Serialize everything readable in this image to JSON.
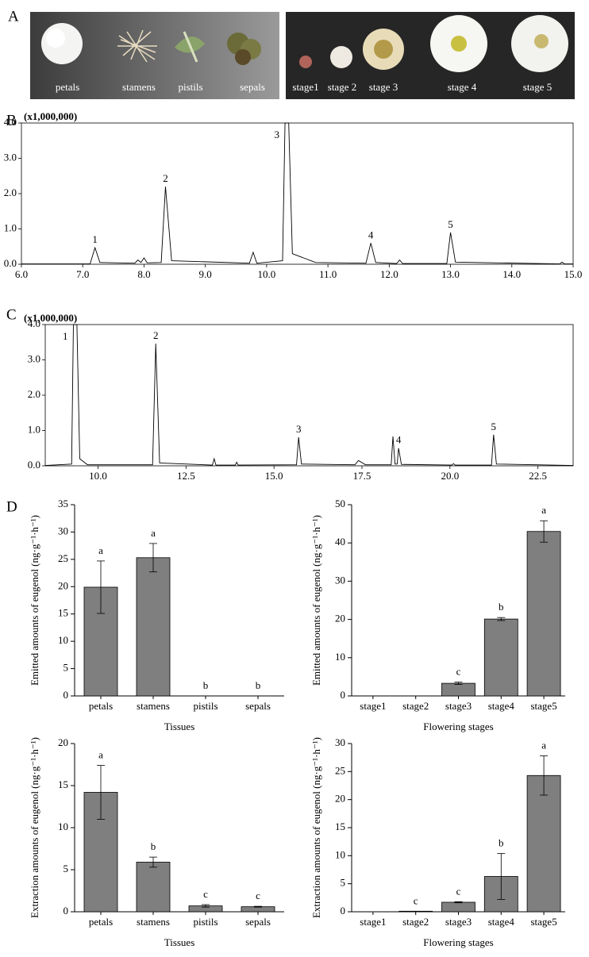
{
  "panel_labels": [
    "A",
    "B",
    "C",
    "D"
  ],
  "photos": {
    "tissues": [
      "petals",
      "stamens",
      "pistils",
      "sepals"
    ],
    "stages": [
      "stage1",
      "stage 2",
      "stage 3",
      "stage 4",
      "stage 5"
    ]
  },
  "chart_data": [
    {
      "type": "line",
      "y_multiplier": "(x1,000,000)",
      "color": "#000000",
      "x": [
        6.0,
        7.12,
        7.2,
        7.28,
        7.85,
        7.9,
        7.95,
        8.0,
        8.05,
        8.28,
        8.35,
        8.45,
        9.72,
        9.78,
        9.84,
        10.26,
        10.3,
        10.36,
        10.42,
        10.8,
        11.62,
        11.7,
        11.78,
        12.12,
        12.17,
        12.22,
        12.94,
        13.0,
        13.08,
        14.78,
        14.82,
        14.86,
        15.0
      ],
      "values": [
        0.01,
        0.01,
        0.47,
        0.05,
        0.03,
        0.12,
        0.05,
        0.18,
        0.04,
        0.05,
        2.2,
        0.1,
        0.03,
        0.34,
        0.03,
        0.1,
        4.0,
        4.0,
        0.3,
        0.05,
        0.03,
        0.6,
        0.05,
        0.02,
        0.12,
        0.02,
        0.02,
        0.9,
        0.06,
        0.01,
        0.06,
        0.01,
        0.01
      ],
      "annotations": [
        {
          "text": "1",
          "x": 7.2,
          "y": 0.47
        },
        {
          "text": "2",
          "x": 8.35,
          "y": 2.2
        },
        {
          "text": "3",
          "x": 10.3,
          "y": 4.0
        },
        {
          "text": "4",
          "x": 11.7,
          "y": 0.6
        },
        {
          "text": "5",
          "x": 13.0,
          "y": 0.9
        }
      ],
      "xlim": [
        6.0,
        15.0
      ],
      "xticks": [
        {
          "value": 6,
          "label": "6.0"
        },
        {
          "value": 7,
          "label": "7.0"
        },
        {
          "value": 8,
          "label": "8.0"
        },
        {
          "value": 9,
          "label": "9.0"
        },
        {
          "value": 10,
          "label": "10.0"
        },
        {
          "value": 11,
          "label": "11.0"
        },
        {
          "value": 12,
          "label": "12.0"
        },
        {
          "value": 13,
          "label": "13.0"
        },
        {
          "value": 14,
          "label": "14.0"
        },
        {
          "value": 15,
          "label": "15.0"
        }
      ],
      "ylim": [
        0,
        4.0
      ],
      "yticks": [
        {
          "value": 0,
          "label": "0.0"
        },
        {
          "value": 1,
          "label": "1.0"
        },
        {
          "value": 2,
          "label": "2.0"
        },
        {
          "value": 3,
          "label": "3.0"
        },
        {
          "value": 4,
          "label": "4.0"
        }
      ]
    },
    {
      "type": "line",
      "y_multiplier": "(x1,000,000)",
      "color": "#000000",
      "x": [
        8.5,
        9.25,
        9.3,
        9.4,
        9.48,
        9.7,
        11.55,
        11.64,
        11.75,
        13.25,
        13.3,
        13.35,
        13.9,
        13.94,
        13.98,
        15.64,
        15.7,
        15.78,
        17.3,
        17.4,
        17.6,
        18.33,
        18.38,
        18.44,
        18.5,
        18.54,
        18.62,
        20.05,
        20.1,
        20.15,
        21.18,
        21.24,
        21.32,
        23.5
      ],
      "values": [
        0.01,
        0.05,
        4.0,
        4.0,
        0.2,
        0.03,
        0.03,
        3.46,
        0.08,
        0.02,
        0.2,
        0.02,
        0.02,
        0.1,
        0.02,
        0.03,
        0.81,
        0.05,
        0.03,
        0.15,
        0.03,
        0.03,
        0.83,
        0.05,
        0.05,
        0.5,
        0.04,
        0.02,
        0.06,
        0.02,
        0.02,
        0.88,
        0.05,
        0.01
      ],
      "annotations": [
        {
          "text": "1",
          "x": 9.3,
          "y": 4.0
        },
        {
          "text": "2",
          "x": 11.64,
          "y": 3.46
        },
        {
          "text": "3",
          "x": 15.7,
          "y": 0.81
        },
        {
          "text": "4",
          "x": 18.54,
          "y": 0.5
        },
        {
          "text": "5",
          "x": 21.24,
          "y": 0.88
        }
      ],
      "xlim": [
        8.5,
        23.5
      ],
      "xticks": [
        {
          "value": 10,
          "label": "10.0"
        },
        {
          "value": 12.5,
          "label": "12.5"
        },
        {
          "value": 15,
          "label": "15.0"
        },
        {
          "value": 17.5,
          "label": "17.5"
        },
        {
          "value": 20,
          "label": "20.0"
        },
        {
          "value": 22.5,
          "label": "22.5"
        }
      ],
      "ylim": [
        0,
        4.0
      ],
      "yticks": [
        {
          "value": 0,
          "label": "0.0"
        },
        {
          "value": 1,
          "label": "1.0"
        },
        {
          "value": 2,
          "label": "2.0"
        },
        {
          "value": 3,
          "label": "3.0"
        },
        {
          "value": 4,
          "label": "4.0"
        }
      ]
    },
    {
      "type": "bar",
      "ylabel": "Emitted amounts of eugenol (ng·g⁻¹·h⁻¹)",
      "xlabel": "Tissues",
      "color": "#7f7f7f",
      "categories": [
        "petals",
        "stamens",
        "pistils",
        "sepals"
      ],
      "values": [
        19.9,
        25.3,
        0,
        0
      ],
      "errors": [
        4.8,
        2.6,
        null,
        null
      ],
      "significance": [
        "a",
        "a",
        "b",
        "b"
      ],
      "ylim": [
        0,
        35
      ],
      "yticks": [
        0,
        5,
        10,
        15,
        20,
        25,
        30,
        35
      ]
    },
    {
      "type": "bar",
      "ylabel": "Emitted amounts of eugenol (ng·g⁻¹·h⁻¹)",
      "xlabel": "Flowering stages",
      "color": "#7f7f7f",
      "categories": [
        "stage1",
        "stage2",
        "stage3",
        "stage4",
        "stage5"
      ],
      "values": [
        0,
        0,
        3.3,
        20.1,
        43
      ],
      "errors": [
        null,
        null,
        0.3,
        0.4,
        2.8
      ],
      "significance": [
        null,
        null,
        "c",
        "b",
        "a"
      ],
      "ylim": [
        0,
        50
      ],
      "yticks": [
        0,
        10,
        20,
        30,
        40,
        50
      ]
    },
    {
      "type": "bar",
      "ylabel": "Extraction amounts of eugenol (ng·g⁻¹·h⁻¹)",
      "xlabel": "Tissues",
      "color": "#7f7f7f",
      "categories": [
        "petals",
        "stamens",
        "pistils",
        "sepals"
      ],
      "values": [
        14.2,
        5.9,
        0.7,
        0.6
      ],
      "errors": [
        3.2,
        0.6,
        0.15,
        0.05
      ],
      "significance": [
        "a",
        "b",
        "c",
        "c"
      ],
      "ylim": [
        0,
        20
      ],
      "yticks": [
        0,
        5,
        10,
        15,
        20
      ]
    },
    {
      "type": "bar",
      "ylabel": "Extraction amounts of eugenol (ng·g⁻¹·h⁻¹)",
      "xlabel": "Flowering stages",
      "color": "#7f7f7f",
      "categories": [
        "stage1",
        "stage2",
        "stage3",
        "stage4",
        "stage5"
      ],
      "values": [
        0,
        0.1,
        1.7,
        6.3,
        24.3
      ],
      "errors": [
        null,
        null,
        0.1,
        4.1,
        3.5
      ],
      "significance": [
        null,
        "c",
        "c",
        "b",
        "a"
      ],
      "ylim": [
        0,
        30
      ],
      "yticks": [
        0,
        5,
        10,
        15,
        20,
        25,
        30
      ]
    }
  ]
}
